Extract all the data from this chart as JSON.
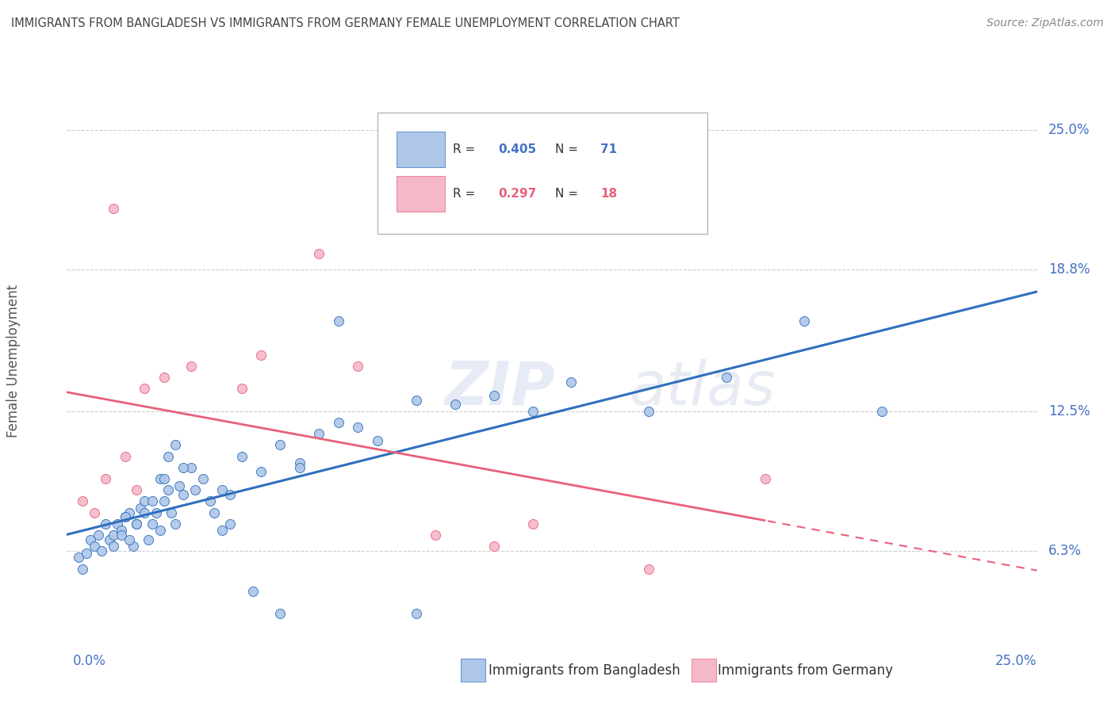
{
  "title": "IMMIGRANTS FROM BANGLADESH VS IMMIGRANTS FROM GERMANY FEMALE UNEMPLOYMENT CORRELATION CHART",
  "source": "Source: ZipAtlas.com",
  "ylabel": "Female Unemployment",
  "yticks": [
    6.3,
    12.5,
    18.8,
    25.0
  ],
  "ytick_labels": [
    "6.3%",
    "12.5%",
    "18.8%",
    "25.0%"
  ],
  "xmin": 0.0,
  "xmax": 25.0,
  "ymin": 2.5,
  "ymax": 27.0,
  "color_bangladesh": "#aec6e8",
  "color_germany": "#f5b8c8",
  "color_bangladesh_line": "#2e6fbd",
  "color_germany_line": "#e8607a",
  "watermark1": "ZIP",
  "watermark2": "atlas",
  "bangladesh_x": [
    0.3,
    0.4,
    0.5,
    0.6,
    0.7,
    0.8,
    0.9,
    1.0,
    1.1,
    1.2,
    1.3,
    1.4,
    1.5,
    1.6,
    1.7,
    1.8,
    1.9,
    2.0,
    2.1,
    2.2,
    2.3,
    2.4,
    2.5,
    2.6,
    2.7,
    2.8,
    2.9,
    3.0,
    3.2,
    3.5,
    3.8,
    4.0,
    4.2,
    4.5,
    5.0,
    5.5,
    6.0,
    6.5,
    7.0,
    7.5,
    8.0,
    9.0,
    10.0,
    11.0,
    12.0,
    13.0,
    15.0,
    17.0,
    19.0,
    21.0,
    1.2,
    1.4,
    1.6,
    1.8,
    2.0,
    2.2,
    2.4,
    2.6,
    2.8,
    3.0,
    3.3,
    3.7,
    4.2,
    4.8,
    5.5,
    7.0,
    9.0,
    1.5,
    2.5,
    4.0,
    6.0
  ],
  "bangladesh_y": [
    6.0,
    5.5,
    6.2,
    6.8,
    6.5,
    7.0,
    6.3,
    7.5,
    6.8,
    7.0,
    7.5,
    7.2,
    7.8,
    8.0,
    6.5,
    7.5,
    8.2,
    8.5,
    6.8,
    7.5,
    8.0,
    7.2,
    8.5,
    9.0,
    8.0,
    7.5,
    9.2,
    8.8,
    10.0,
    9.5,
    8.0,
    9.0,
    8.8,
    10.5,
    9.8,
    11.0,
    10.2,
    11.5,
    12.0,
    11.8,
    11.2,
    13.0,
    12.8,
    13.2,
    12.5,
    13.8,
    12.5,
    14.0,
    16.5,
    12.5,
    6.5,
    7.0,
    6.8,
    7.5,
    8.0,
    8.5,
    9.5,
    10.5,
    11.0,
    10.0,
    9.0,
    8.5,
    7.5,
    4.5,
    3.5,
    16.5,
    3.5,
    7.8,
    9.5,
    7.2,
    10.0
  ],
  "germany_x": [
    0.4,
    0.7,
    1.0,
    1.2,
    1.5,
    1.8,
    2.0,
    2.5,
    3.2,
    4.5,
    5.0,
    6.5,
    7.5,
    9.5,
    12.0,
    15.0,
    18.0,
    11.0
  ],
  "germany_y": [
    8.5,
    8.0,
    9.5,
    21.5,
    10.5,
    9.0,
    13.5,
    14.0,
    14.5,
    13.5,
    15.0,
    19.5,
    14.5,
    7.0,
    7.5,
    5.5,
    9.5,
    6.5
  ]
}
